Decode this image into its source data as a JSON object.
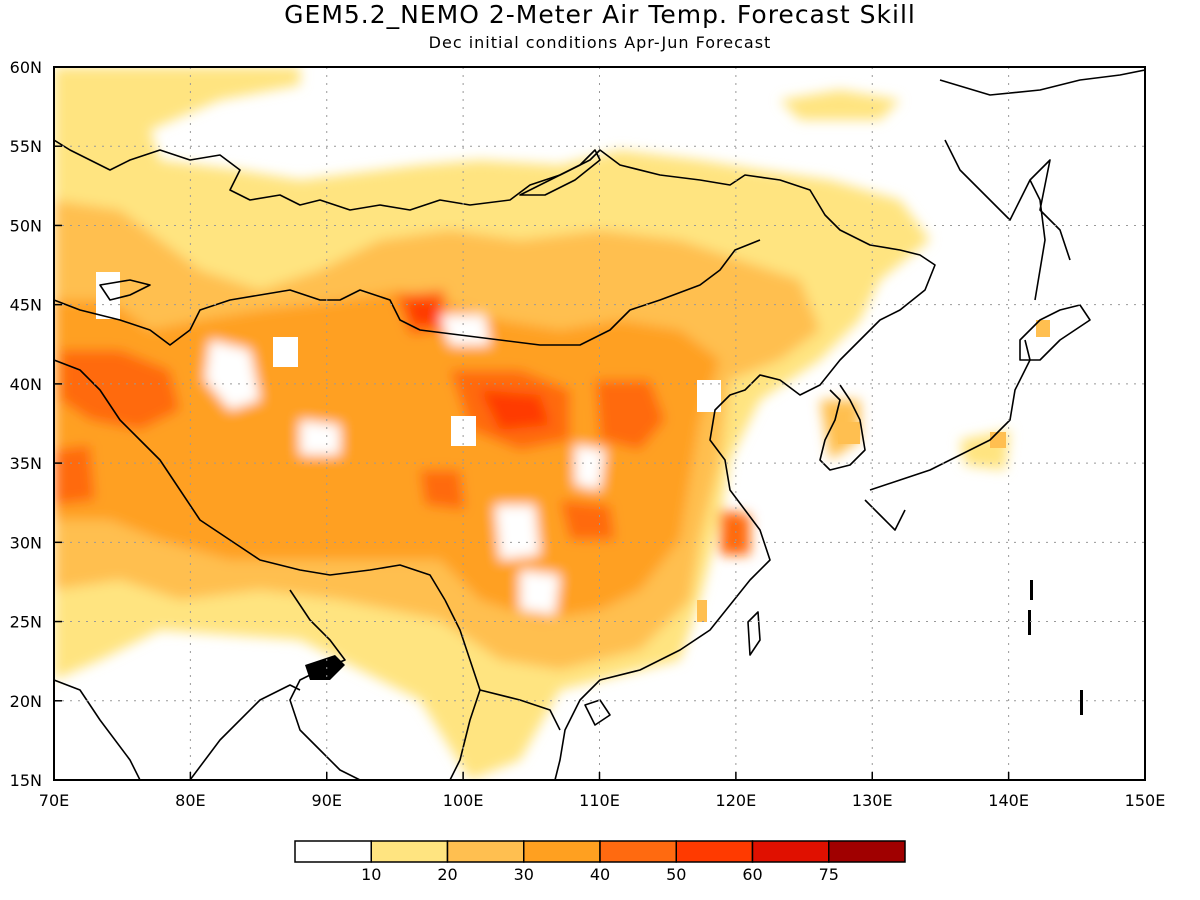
{
  "title": "GEM5.2_NEMO 2-Meter Air Temp. Forecast Skill",
  "subtitle": "Dec initial conditions  Apr-Jun Forecast",
  "map": {
    "lon_range": [
      70,
      150
    ],
    "lat_range": [
      15,
      60
    ],
    "lon_ticks": [
      {
        "value": 70,
        "label": "70E"
      },
      {
        "value": 80,
        "label": "80E"
      },
      {
        "value": 90,
        "label": "90E"
      },
      {
        "value": 100,
        "label": "100E"
      },
      {
        "value": 110,
        "label": "110E"
      },
      {
        "value": 120,
        "label": "120E"
      },
      {
        "value": 130,
        "label": "130E"
      },
      {
        "value": 140,
        "label": "140E"
      },
      {
        "value": 150,
        "label": "150E"
      }
    ],
    "lat_ticks": [
      {
        "value": 15,
        "label": "15N"
      },
      {
        "value": 20,
        "label": "20N"
      },
      {
        "value": 25,
        "label": "25N"
      },
      {
        "value": 30,
        "label": "30N"
      },
      {
        "value": 35,
        "label": "35N"
      },
      {
        "value": 40,
        "label": "40N"
      },
      {
        "value": 45,
        "label": "45N"
      },
      {
        "value": 50,
        "label": "50N"
      },
      {
        "value": 55,
        "label": "55N"
      },
      {
        "value": 60,
        "label": "60N"
      }
    ],
    "grid": "dotted"
  },
  "colorbar": {
    "colors": [
      "#ffffff",
      "#ffe480",
      "#ffbf50",
      "#ffa020",
      "#ff6a10",
      "#ff3a00",
      "#e01000",
      "#a00000"
    ],
    "labels": [
      "10",
      "20",
      "30",
      "40",
      "50",
      "60",
      "75"
    ]
  },
  "colors": {
    "skill_10_20": "#ffe480",
    "skill_20_30": "#ffbf50",
    "skill_30_40": "#ffa020",
    "skill_40_50": "#ff6a10",
    "skill_50_60": "#ff3a00"
  }
}
